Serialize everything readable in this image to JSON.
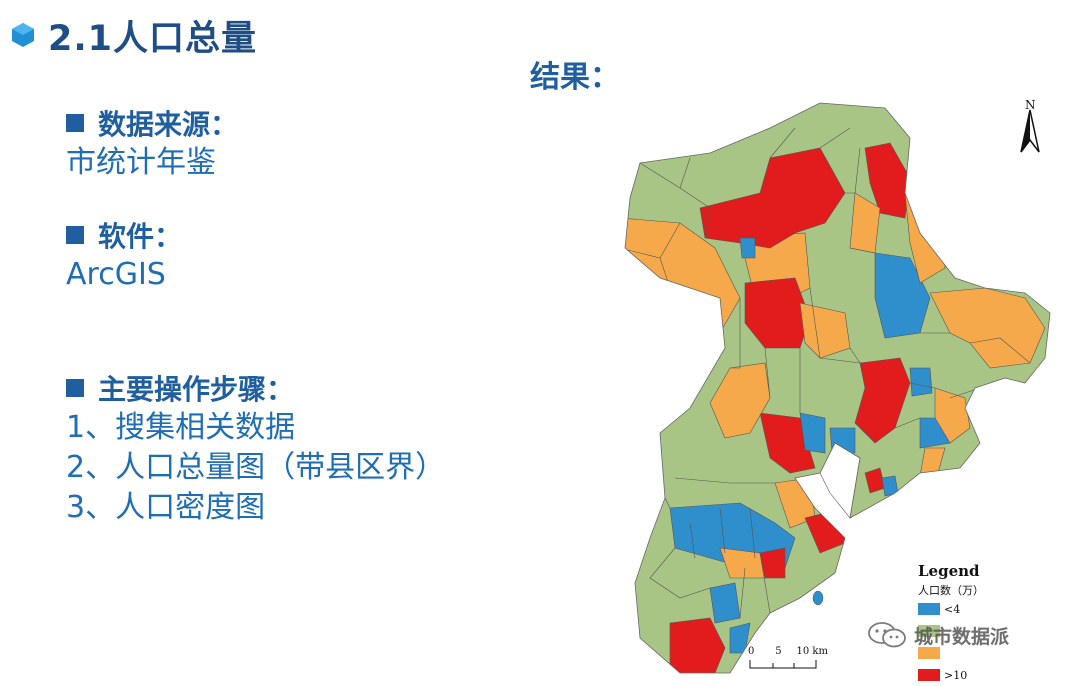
{
  "slide": {
    "title": "2.1人口总量",
    "result_label": "结果："
  },
  "sections": {
    "source": {
      "heading": "数据来源：",
      "body": "市统计年鉴"
    },
    "software": {
      "heading": "软件：",
      "body": "ArcGIS"
    },
    "steps": {
      "heading": "主要操作步骤：",
      "items": [
        "1、搜集相关数据",
        "2、人口总量图（带县区界）",
        "3、人口密度图"
      ]
    }
  },
  "map": {
    "north_label": "N",
    "legend": {
      "title": "Legend",
      "subtitle": "人口数（万）",
      "items": [
        {
          "label": "<4",
          "color": "#2e8fcc"
        },
        {
          "label": "",
          "color": "#a8c585"
        },
        {
          "label": "",
          "color": "#f6a94a"
        },
        {
          "label": ">10",
          "color": "#e21c1c"
        }
      ]
    },
    "scalebar": {
      "ticks": [
        "0",
        "5",
        "10 km"
      ]
    },
    "colors": {
      "blue": "#2e8fcc",
      "green": "#a8c585",
      "orange": "#f6a94a",
      "red": "#e21c1c"
    }
  },
  "watermark": {
    "text": "城市数据派"
  },
  "colors": {
    "title": "#1f4e86",
    "accent": "#1f5fa0",
    "body_text": "#1e6db5",
    "hex_icon": "#1f8fd6"
  }
}
